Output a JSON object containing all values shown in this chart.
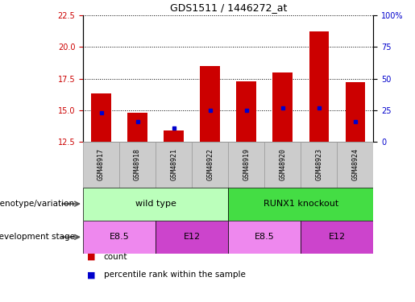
{
  "title": "GDS1511 / 1446272_at",
  "samples": [
    "GSM48917",
    "GSM48918",
    "GSM48921",
    "GSM48922",
    "GSM48919",
    "GSM48920",
    "GSM48923",
    "GSM48924"
  ],
  "count_values": [
    16.3,
    14.8,
    13.4,
    18.5,
    17.3,
    18.0,
    21.2,
    17.2
  ],
  "percentile_values": [
    14.8,
    14.1,
    13.6,
    15.0,
    15.0,
    15.2,
    15.2,
    14.1
  ],
  "ylim_left": [
    12.5,
    22.5
  ],
  "ylim_right": [
    0,
    100
  ],
  "yticks_left": [
    12.5,
    15.0,
    17.5,
    20.0,
    22.5
  ],
  "yticks_right": [
    0,
    25,
    50,
    75,
    100
  ],
  "ytick_labels_right": [
    "0",
    "25",
    "50",
    "75",
    "100%"
  ],
  "bar_color": "#cc0000",
  "dot_color": "#0000cc",
  "bar_width": 0.55,
  "genotype_groups": [
    {
      "label": "wild type",
      "start": 0,
      "end": 4,
      "color": "#bbffbb"
    },
    {
      "label": "RUNX1 knockout",
      "start": 4,
      "end": 8,
      "color": "#44dd44"
    }
  ],
  "stage_groups": [
    {
      "label": "E8.5",
      "start": 0,
      "end": 2,
      "color": "#ee88ee"
    },
    {
      "label": "E12",
      "start": 2,
      "end": 4,
      "color": "#cc44cc"
    },
    {
      "label": "E8.5",
      "start": 4,
      "end": 6,
      "color": "#ee88ee"
    },
    {
      "label": "E12",
      "start": 6,
      "end": 8,
      "color": "#cc44cc"
    }
  ],
  "genotype_label": "genotype/variation",
  "stage_label": "development stage",
  "legend_count": "count",
  "legend_percentile": "percentile rank within the sample",
  "left_axis_color": "#cc0000",
  "right_axis_color": "#0000cc",
  "sample_box_color": "#cccccc",
  "box_edge_color": "#999999"
}
